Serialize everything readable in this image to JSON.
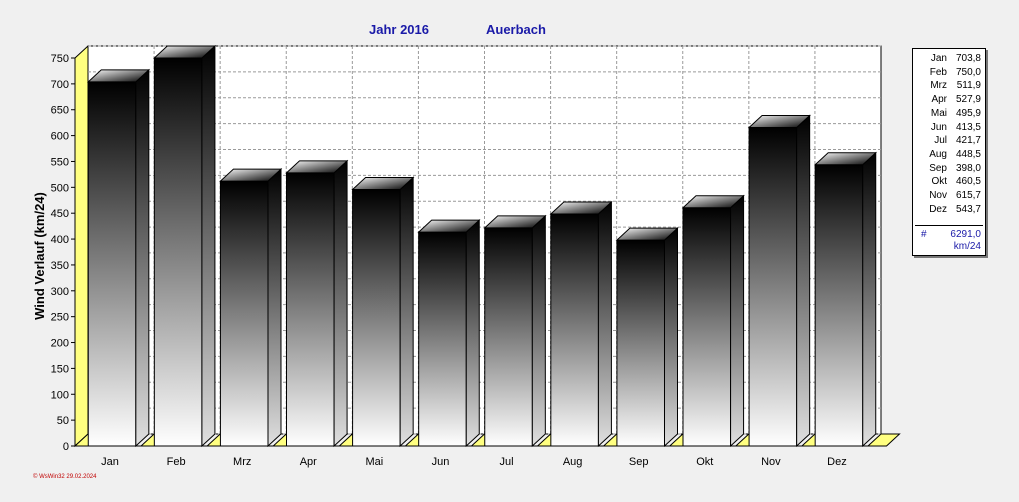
{
  "title": {
    "year": "Jahr  2016",
    "location": "Auerbach"
  },
  "chart_data": {
    "type": "bar",
    "categories": [
      "Jan",
      "Feb",
      "Mrz",
      "Apr",
      "Mai",
      "Jun",
      "Jul",
      "Aug",
      "Sep",
      "Okt",
      "Nov",
      "Dez"
    ],
    "values": [
      703.8,
      750.0,
      511.9,
      527.9,
      495.9,
      413.5,
      421.7,
      448.5,
      398.0,
      460.5,
      615.7,
      543.7
    ],
    "ylabel": "Wind Verlauf  (km/24)",
    "ylim": [
      0,
      750
    ],
    "yticks": [
      0,
      50,
      100,
      150,
      200,
      250,
      300,
      350,
      400,
      450,
      500,
      550,
      600,
      650,
      700,
      750
    ],
    "grid": true,
    "legend_position": "right"
  },
  "legend": {
    "rows": [
      {
        "month": "Jan",
        "value": "703,8"
      },
      {
        "month": "Feb",
        "value": "750,0"
      },
      {
        "month": "Mrz",
        "value": "511,9"
      },
      {
        "month": "Apr",
        "value": "527,9"
      },
      {
        "month": "Mai",
        "value": "495,9"
      },
      {
        "month": "Jun",
        "value": "413,5"
      },
      {
        "month": "Jul",
        "value": "421,7"
      },
      {
        "month": "Aug",
        "value": "448,5"
      },
      {
        "month": "Sep",
        "value": "398,0"
      },
      {
        "month": "Okt",
        "value": "460,5"
      },
      {
        "month": "Nov",
        "value": "615,7"
      },
      {
        "month": "Dez",
        "value": "543,7"
      }
    ],
    "hash": "#",
    "total": "6291,0",
    "unit": "km/24"
  },
  "footer": "© WsWin32  29.02.2024",
  "colors": {
    "title": "#1a1aa8",
    "wall": "#ffff80",
    "grid": "#9a9a9a",
    "footer": "#c00000"
  }
}
